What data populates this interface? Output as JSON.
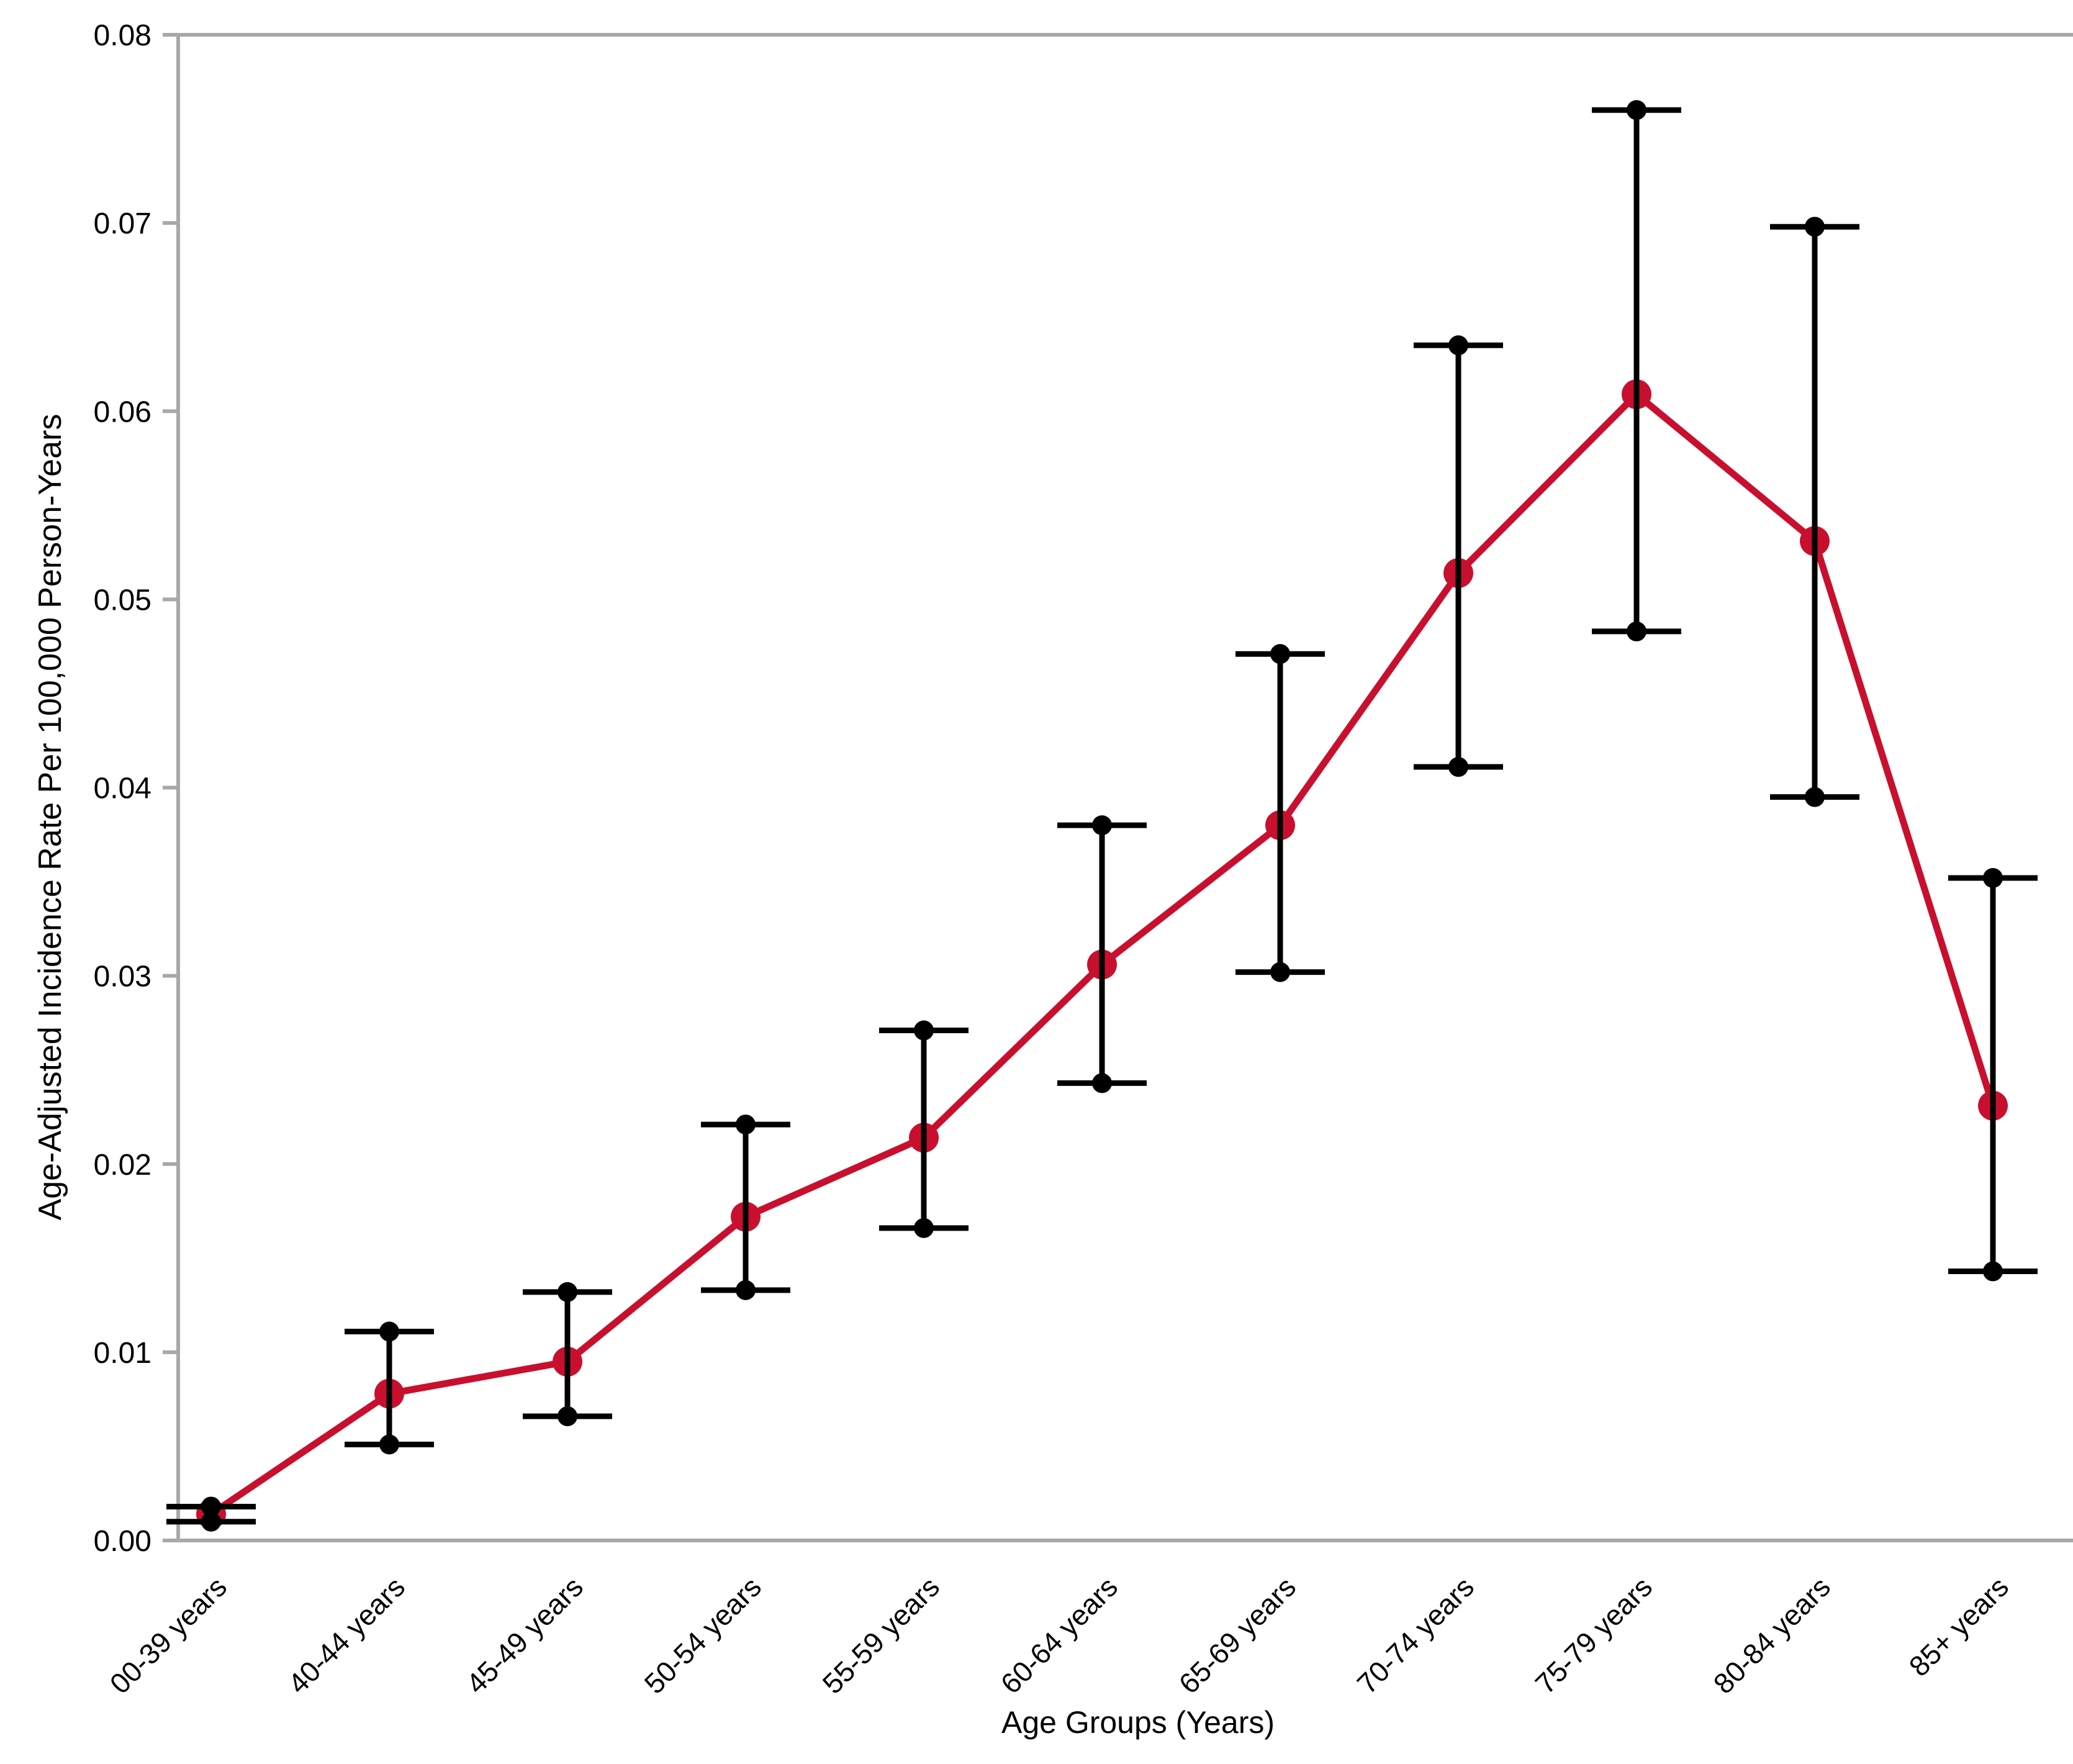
{
  "chart_data": {
    "type": "line",
    "title": "",
    "xlabel": "Age Groups (Years)",
    "ylabel": "Age-Adjusted Incidence Rate Per 100,000 Person-Years",
    "categories": [
      "00-39 years",
      "40-44 years",
      "45-49 years",
      "50-54 years",
      "55-59 years",
      "60-64 years",
      "65-69 years",
      "70-74 years",
      "75-79 years",
      "80-84 years",
      "85+ years"
    ],
    "series": [
      {
        "name": "Age-adjusted incidence rate",
        "color": "#C8102E",
        "values": [
          0.0014,
          0.0078,
          0.0095,
          0.0172,
          0.0214,
          0.0306,
          0.038,
          0.0514,
          0.0609,
          0.0531,
          0.0231
        ],
        "ci_lower": [
          0.001,
          0.0051,
          0.0066,
          0.0133,
          0.0166,
          0.0243,
          0.0302,
          0.0411,
          0.0483,
          0.0395,
          0.0143
        ],
        "ci_upper": [
          0.0018,
          0.0111,
          0.0132,
          0.0221,
          0.0271,
          0.038,
          0.0471,
          0.0635,
          0.076,
          0.0698,
          0.0352
        ]
      }
    ],
    "ylim": [
      0,
      0.08
    ],
    "y_tick_step": 0.01,
    "y_tick_labels": [
      "0.00",
      "0.01",
      "0.02",
      "0.03",
      "0.04",
      "0.05",
      "0.06",
      "0.07",
      "0.08"
    ],
    "x_tick_rotation_deg": 45,
    "grid": false,
    "legend": "none",
    "error_bar_color": "#000000",
    "axis_color": "#A8A8A8",
    "text_color": "#000000",
    "background": "#FFFFFF"
  }
}
